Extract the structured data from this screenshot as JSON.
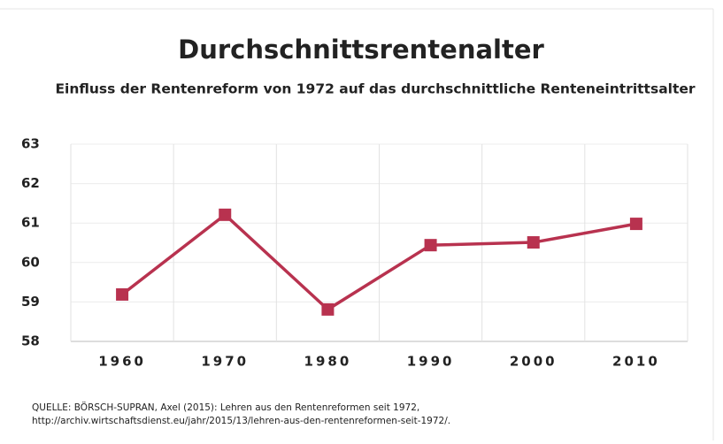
{
  "chart_data": {
    "type": "line",
    "title": "Durchschnittsrentenalter",
    "subtitle": "Einfluss der Rentenreform von 1972 auf das durchschnittliche Renteneintrittsalter",
    "categories": [
      "1960",
      "1970",
      "1980",
      "1990",
      "2000",
      "2010"
    ],
    "series": [
      {
        "name": "Durchschnittsrentenalter",
        "color": "#b8324f",
        "values": [
          59.19,
          61.21,
          58.81,
          60.44,
          60.51,
          60.98
        ]
      }
    ],
    "ylim": [
      58,
      63
    ],
    "yticks": [
      58,
      59,
      60,
      61,
      62,
      63
    ],
    "grid": true,
    "source": [
      "QUELLE: BÖRSCH-SUPRAN, Axel (2015): Lehren aus den Rentenreformen seit 1972,",
      "http://archiv.wirtschaftsdienst.eu/jahr/2015/13/lehren-aus-den-rentenreformen-seit-1972/."
    ]
  }
}
